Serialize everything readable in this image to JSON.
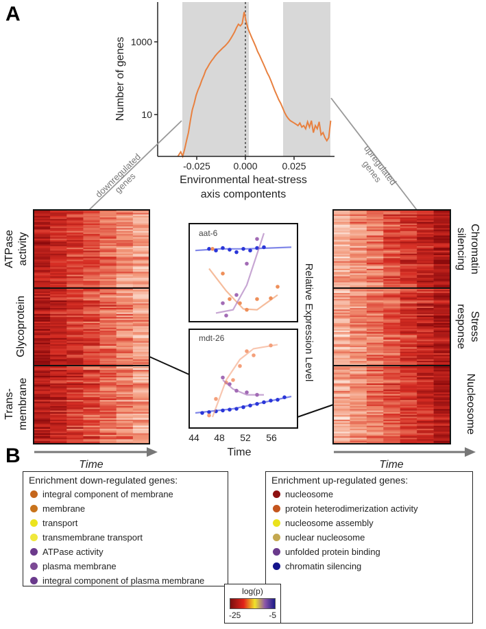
{
  "panel_labels": {
    "a": "A",
    "b": "B"
  },
  "chart_data": [
    {
      "type": "line",
      "title": "",
      "xlabel": "Environmental heat-stress axis compontents",
      "ylabel": "Number of genes",
      "yscale": "log",
      "xlim": [
        -0.045,
        0.047
      ],
      "ylim": [
        1,
        8000
      ],
      "xticks": [
        "-0.025",
        "0.000",
        "0.025"
      ],
      "yticks": [
        "10",
        "1000"
      ],
      "shaded_ranges": [
        [
          -0.033,
          -0.0085
        ],
        [
          0.0195,
          0.0445
        ]
      ],
      "color": "#e8803f",
      "x": [
        -0.0345,
        -0.033,
        -0.032,
        -0.031,
        -0.03,
        -0.029,
        -0.028,
        -0.027,
        -0.026,
        -0.025,
        -0.024,
        -0.023,
        -0.022,
        -0.021,
        -0.02,
        -0.019,
        -0.018,
        -0.017,
        -0.016,
        -0.015,
        -0.014,
        -0.013,
        -0.012,
        -0.011,
        -0.01,
        -0.009,
        -0.008,
        -0.007,
        -0.006,
        -0.005,
        -0.004,
        -0.003,
        -0.002,
        -0.001,
        0.0,
        0.001,
        0.002,
        0.003,
        0.004,
        0.005,
        0.006,
        0.007,
        0.008,
        0.009,
        0.01,
        0.011,
        0.012,
        0.013,
        0.014,
        0.015,
        0.016,
        0.017,
        0.018,
        0.019,
        0.02,
        0.021,
        0.022,
        0.023,
        0.024,
        0.025,
        0.026,
        0.027,
        0.028,
        0.029,
        0.03,
        0.031,
        0.032,
        0.033,
        0.034,
        0.035,
        0.036,
        0.037,
        0.038,
        0.039,
        0.04,
        0.041,
        0.042,
        0.043,
        0.044,
        0.045
      ],
      "values": [
        1,
        1.3,
        1,
        1.5,
        2.5,
        4,
        8,
        15,
        22,
        35,
        48,
        62,
        85,
        110,
        150,
        180,
        220,
        260,
        300,
        350,
        400,
        450,
        500,
        560,
        620,
        700,
        800,
        950,
        1150,
        1400,
        1800,
        2200,
        2000,
        2300,
        4500,
        2600,
        1700,
        1300,
        1000,
        780,
        600,
        450,
        360,
        280,
        220,
        170,
        130,
        105,
        80,
        60,
        45,
        35,
        27,
        22,
        17,
        13,
        10.5,
        9,
        8,
        7.5,
        7,
        6.5,
        6,
        7,
        5.5,
        6,
        5,
        7.5,
        5.5,
        8,
        4,
        6,
        5,
        7.5,
        3.5,
        4,
        3,
        2.5,
        3,
        8
      ]
    },
    {
      "type": "scatter",
      "title": "aat-6",
      "xlabel": "Time",
      "ylabel": "Relative Expression Level",
      "xlim": [
        44,
        59
      ],
      "xticks": [
        "44",
        "48",
        "52",
        "56"
      ],
      "series": [
        {
          "name": "blue",
          "color": "#2a36d8",
          "x": [
            46.5,
            47.5,
            48.5,
            49.5,
            50.5,
            51.5,
            52.5,
            53.5,
            54.5
          ],
          "y": [
            0.86,
            0.84,
            0.87,
            0.85,
            0.82,
            0.86,
            0.84,
            0.87,
            0.88
          ],
          "fit": [
            [
              44.5,
              0.84
            ],
            [
              48,
              0.86
            ],
            [
              52,
              0.86
            ],
            [
              58.5,
              0.88
            ]
          ]
        },
        {
          "name": "orange",
          "color": "#ee8f5a",
          "x": [
            47,
            48.5,
            49.5,
            51,
            52,
            53.5,
            55.5,
            56.5
          ],
          "y": [
            0.86,
            0.56,
            0.25,
            0.2,
            0.12,
            0.25,
            0.26,
            0.4
          ],
          "fit": [
            [
              46.5,
              0.62
            ],
            [
              49,
              0.35
            ],
            [
              51.5,
              0.13
            ],
            [
              53.5,
              0.12
            ],
            [
              56.5,
              0.3
            ]
          ]
        },
        {
          "name": "purple",
          "color": "#a26bb5",
          "x": [
            48.5,
            49,
            50.5,
            52,
            53.5
          ],
          "y": [
            0.2,
            0.05,
            0.3,
            0.68,
            0.98
          ],
          "fit": [
            [
              47.5,
              0.08
            ],
            [
              50,
              0.12
            ],
            [
              52,
              0.42
            ],
            [
              54.5,
              1.05
            ]
          ]
        }
      ]
    },
    {
      "type": "scatter",
      "title": "mdt-26",
      "xlabel": "Time",
      "ylabel": "Relative Expression Level",
      "xlim": [
        44,
        59
      ],
      "xticks": [
        "44",
        "48",
        "52",
        "56"
      ],
      "series": [
        {
          "name": "blue",
          "color": "#2a36d8",
          "x": [
            45.5,
            46.5,
            47.5,
            48.5,
            49.5,
            50.5,
            51.5,
            52.5,
            53.5,
            54.5,
            55.5,
            56.5,
            57.5
          ],
          "y": [
            0.15,
            0.16,
            0.17,
            0.18,
            0.19,
            0.2,
            0.22,
            0.24,
            0.26,
            0.28,
            0.3,
            0.31,
            0.34
          ],
          "fit": [
            [
              44.5,
              0.15
            ],
            [
              50,
              0.2
            ],
            [
              58.5,
              0.35
            ]
          ]
        },
        {
          "name": "orange",
          "color": "#f4a07b",
          "x": [
            46.5,
            47.5,
            49,
            50,
            51,
            52,
            53,
            55.5
          ],
          "y": [
            0.12,
            0.32,
            0.52,
            0.55,
            0.72,
            0.9,
            0.85,
            0.97
          ],
          "fit": [
            [
              47,
              0.1
            ],
            [
              49,
              0.55
            ],
            [
              51,
              0.8
            ],
            [
              53,
              0.93
            ],
            [
              56.5,
              0.98
            ]
          ]
        },
        {
          "name": "purple",
          "color": "#a26bb5",
          "x": [
            48.5,
            49.5,
            50.5,
            52,
            53.5
          ],
          "y": [
            0.58,
            0.5,
            0.42,
            0.4,
            0.37
          ],
          "fit": [
            [
              48.5,
              0.55
            ],
            [
              50,
              0.44
            ],
            [
              52,
              0.37
            ],
            [
              54.5,
              0.37
            ]
          ]
        }
      ]
    }
  ],
  "arm_labels": {
    "down": [
      "downregulated",
      "genes"
    ],
    "up": [
      "upregulated",
      "genes"
    ]
  },
  "heatmap_left": {
    "labels": [
      "ATPase activity",
      "Glycoprotein",
      "Trans- membrane"
    ],
    "time_label": "Time"
  },
  "heatmap_right": {
    "labels": [
      "Chromatin silencing",
      "Stress response",
      "Nucleosome"
    ],
    "time_label": "Time"
  },
  "inset_titles": {
    "top": "aat-6",
    "bottom": "mdt-26"
  },
  "inset_ylabel": "Relative Expression Level",
  "inset_xlabel": "Time",
  "inset_xticks": [
    "44",
    "48",
    "52",
    "56"
  ],
  "enrichment_down": {
    "title": "Enrichment down-regulated genes:",
    "items": [
      {
        "label": "integral component of membrane",
        "color": "#c5661c"
      },
      {
        "label": "membrane",
        "color": "#c8731c"
      },
      {
        "label": "transport",
        "color": "#ece41e"
      },
      {
        "label": "transmembrane transport",
        "color": "#f0e83c"
      },
      {
        "label": "ATPase activity",
        "color": "#6c3a8c"
      },
      {
        "label": "plasma membrane",
        "color": "#7c4a95"
      },
      {
        "label": "integral component of plasma membrane",
        "color": "#6a3a8c"
      }
    ]
  },
  "enrichment_up": {
    "title": "Enrichment  up-regulated genes:",
    "items": [
      {
        "label": "nucleosome",
        "color": "#8e1010"
      },
      {
        "label": "protein heterodimerization activity",
        "color": "#c4551e"
      },
      {
        "label": "nucleosome assembly",
        "color": "#eae21c"
      },
      {
        "label": "nuclear nucleosome",
        "color": "#c4a850"
      },
      {
        "label": "unfolded protein binding",
        "color": "#6a3a8c"
      },
      {
        "label": "chromatin silencing",
        "color": "#14148c"
      }
    ]
  },
  "colorbar": {
    "title": "log(p)",
    "min": "-25",
    "max": "-5",
    "colors": [
      "#7a1010",
      "#e2231a",
      "#f0e42a",
      "#8a55a8",
      "#1a1a88"
    ]
  }
}
